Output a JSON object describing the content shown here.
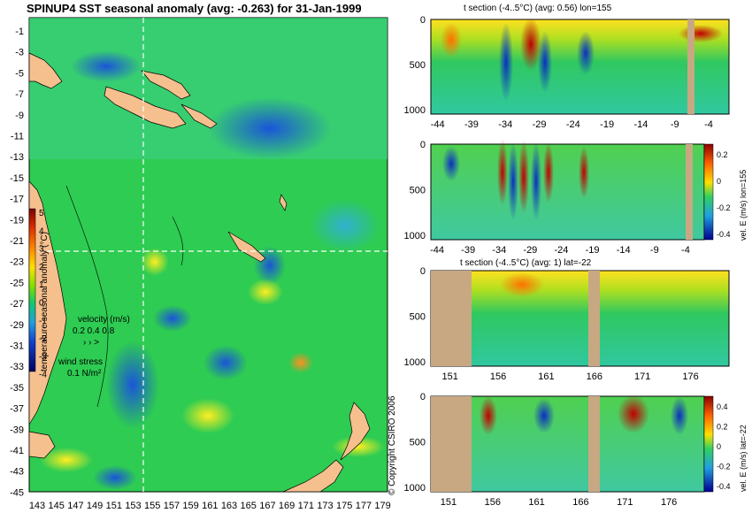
{
  "main_map": {
    "title": "SPINUP4 SST seasonal anomaly (avg: -0.263) for 31-Jan-1999",
    "lat_ticks": [
      "-1",
      "-3",
      "-5",
      "-7",
      "-9",
      "-11",
      "-13",
      "-15",
      "-17",
      "-19",
      "-21",
      "-23",
      "-25",
      "-27",
      "-29",
      "-31",
      "-33",
      "-35",
      "-37",
      "-39",
      "-41",
      "-43",
      "-45"
    ],
    "lon_ticks": [
      "143",
      "145",
      "147",
      "149",
      "151",
      "153",
      "155",
      "157",
      "159",
      "161",
      "163",
      "165",
      "167",
      "169",
      "171",
      "173",
      "175",
      "177",
      "179"
    ],
    "colorbar": {
      "label": "temperature seasonal anomaly (°C)",
      "ticks": [
        "5",
        "4",
        "3",
        "2",
        "1",
        "0",
        "-1",
        "-2",
        "-3",
        "-4"
      ]
    },
    "velocity_legend": {
      "label": "velocity (m/s)",
      "scale": "0.2 0.4 0.8"
    },
    "wind_legend": {
      "label": "wind stress",
      "scale": "0.1 N/m²"
    },
    "crosshair": {
      "lon": 155,
      "lat": -22
    },
    "colors": {
      "ocean": "#2ecc52",
      "land": "#f5c08e",
      "arrows": "#cc33cc",
      "crosshair": "#ffffff"
    }
  },
  "panels": [
    {
      "title": "t section (-4..5°C) (avg: 0.56) lon=155",
      "y_ticks": [
        "0",
        "500",
        "1000"
      ],
      "x_ticks": [
        "-44",
        "-39",
        "-34",
        "-29",
        "-24",
        "-19",
        "-14",
        "-9",
        "-4"
      ],
      "colorbar": null
    },
    {
      "title": "",
      "y_ticks": [
        "0",
        "500",
        "1000"
      ],
      "x_ticks": [
        "-44",
        "-39",
        "-34",
        "-29",
        "-24",
        "-19",
        "-14",
        "-9",
        "-4"
      ],
      "colorbar": {
        "label": "vel. E (m/s) lon=155",
        "ticks": [
          "0.2",
          "0",
          "-0.2",
          "-0.4"
        ]
      }
    },
    {
      "title": "t section (-4..5°C) (avg: 1) lat=-22",
      "y_ticks": [
        "0",
        "500",
        "1000"
      ],
      "x_ticks": [
        "151",
        "156",
        "161",
        "166",
        "171",
        "176"
      ],
      "colorbar": null
    },
    {
      "title": "",
      "y_ticks": [
        "0",
        "500",
        "1000"
      ],
      "x_ticks": [
        "151",
        "156",
        "161",
        "166",
        "171",
        "176"
      ],
      "colorbar": {
        "label": "vel. E (m/s) lat=-22",
        "ticks": [
          "0.4",
          "0.2",
          "0",
          "-0.2",
          "-0.4"
        ]
      }
    }
  ],
  "copyright": "© Copyright CSIRO 2006",
  "chart_data": [
    {
      "type": "heatmap",
      "title": "SPINUP4 SST seasonal anomaly (avg: -0.263) for 31-Jan-1999",
      "xlabel": "",
      "ylabel": "",
      "xlim": [
        143,
        180
      ],
      "ylim": [
        -45,
        0
      ],
      "colorbar_label": "temperature seasonal anomaly (°C)",
      "colorbar_range": [
        -4,
        5
      ]
    },
    {
      "type": "heatmap",
      "title": "t section (-4..5°C) (avg: 0.56) lon=155",
      "xlim": [
        -45,
        -1
      ],
      "ylim": [
        1050,
        0
      ],
      "colorbar_range": [
        -4,
        5
      ]
    },
    {
      "type": "heatmap",
      "title": "",
      "xlim": [
        -45,
        -1
      ],
      "ylim": [
        1050,
        0
      ],
      "colorbar_label": "vel. E (m/s) lon=155",
      "colorbar_range": [
        -0.4,
        0.3
      ]
    },
    {
      "type": "heatmap",
      "title": "t section (-4..5°C) (avg: 1) lat=-22",
      "xlim": [
        149,
        180
      ],
      "ylim": [
        1050,
        0
      ],
      "colorbar_range": [
        -4,
        5
      ]
    },
    {
      "type": "heatmap",
      "title": "",
      "xlim": [
        149,
        180
      ],
      "ylim": [
        1050,
        0
      ],
      "colorbar_label": "vel. E (m/s) lat=-22",
      "colorbar_range": [
        -0.4,
        0.45
      ]
    }
  ]
}
